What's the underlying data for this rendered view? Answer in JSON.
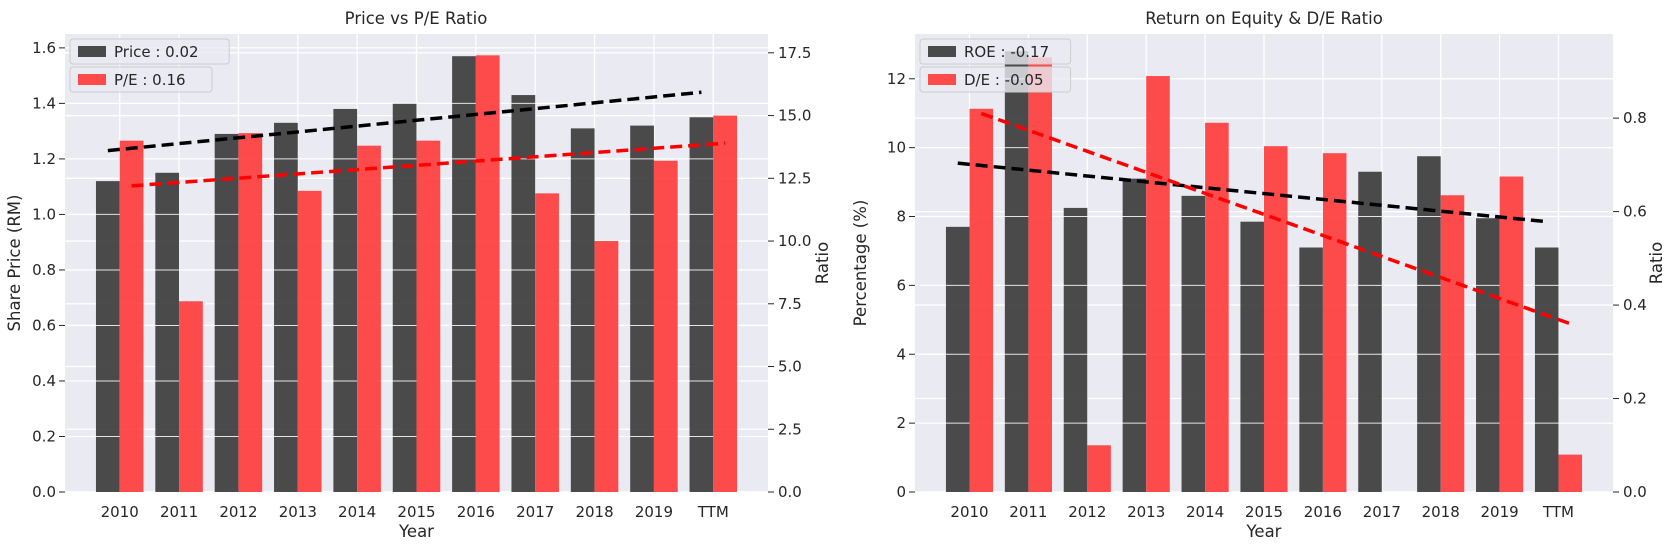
{
  "chart_data": [
    {
      "type": "bar",
      "title": "Price vs P/E Ratio",
      "xlabel": "Year",
      "ylabel": "Share Price (RM)",
      "y2label": "Ratio",
      "categories": [
        "2010",
        "2011",
        "2012",
        "2013",
        "2014",
        "2015",
        "2016",
        "2017",
        "2018",
        "2019",
        "TTM"
      ],
      "ylim": [
        0,
        1.65
      ],
      "y2lim": [
        0,
        18.25
      ],
      "yticks": [
        "0.0",
        "0.2",
        "0.4",
        "0.6",
        "0.8",
        "1.0",
        "1.2",
        "1.4",
        "1.6"
      ],
      "y2ticks": [
        "0.0",
        "2.5",
        "5.0",
        "7.5",
        "10.0",
        "12.5",
        "15.0",
        "17.5"
      ],
      "legend_position": "top-left",
      "grid": true,
      "series": [
        {
          "name": "Price : 0.02",
          "axis": "left",
          "color": "#333333",
          "values": [
            1.12,
            1.15,
            1.29,
            1.33,
            1.38,
            1.4,
            1.57,
            1.43,
            1.31,
            1.32,
            1.35
          ],
          "trend": [
            1.23,
            1.44
          ]
        },
        {
          "name": "P/E : 0.16",
          "axis": "right",
          "color": "#ff3333",
          "values": [
            14.0,
            7.6,
            14.3,
            12.0,
            13.8,
            14.0,
            17.4,
            11.9,
            10.0,
            13.2,
            15.0
          ],
          "trend": [
            12.2,
            13.9
          ]
        }
      ]
    },
    {
      "type": "bar",
      "title": "Return on Equity & D/E Ratio",
      "xlabel": "Year",
      "ylabel": "Percentage (%)",
      "y2label": "Ratio",
      "categories": [
        "2010",
        "2011",
        "2012",
        "2013",
        "2014",
        "2015",
        "2016",
        "2017",
        "2018",
        "2019",
        "TTM"
      ],
      "ylim": [
        0,
        13.3
      ],
      "y2lim": [
        0,
        0.98
      ],
      "yticks": [
        "0",
        "2",
        "4",
        "6",
        "8",
        "10",
        "12"
      ],
      "y2ticks": [
        "0.0",
        "0.2",
        "0.4",
        "0.6",
        "0.8"
      ],
      "legend_position": "top-left",
      "grid": true,
      "series": [
        {
          "name": "ROE : -0.17",
          "axis": "left",
          "color": "#333333",
          "values": [
            7.7,
            12.8,
            8.25,
            9.1,
            8.6,
            7.85,
            7.1,
            9.3,
            9.75,
            7.95,
            7.1
          ],
          "trend": [
            9.55,
            7.85
          ]
        },
        {
          "name": "D/E : -0.05",
          "axis": "right",
          "color": "#ff3333",
          "values": [
            0.82,
            0.93,
            0.1,
            0.89,
            0.79,
            0.74,
            0.725,
            0.0,
            0.635,
            0.675,
            0.08
          ],
          "trend": [
            0.81,
            0.36
          ]
        }
      ]
    }
  ]
}
